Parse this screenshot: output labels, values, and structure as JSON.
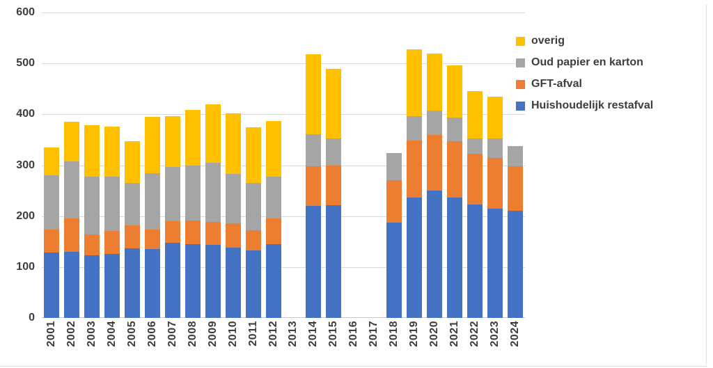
{
  "chart": {
    "legend": [
      {
        "label": "overig",
        "color": "#FFC000"
      },
      {
        "label": "Oud papier en karton",
        "color": "#A5A5A5"
      },
      {
        "label": "GFT-afval",
        "color": "#ED7D31"
      },
      {
        "label": "Huishoudelijk restafval",
        "color": "#4472C4"
      }
    ],
    "y_ticks": [
      "600",
      "500",
      "400",
      "300",
      "200",
      "100",
      "0"
    ]
  },
  "chart_data": {
    "type": "bar",
    "stacked": true,
    "title": "",
    "xlabel": "",
    "ylabel": "",
    "ylim": [
      0,
      600
    ],
    "y_step": 100,
    "grid": true,
    "legend_position": "right",
    "categories": [
      "2001",
      "2002",
      "2003",
      "2004",
      "2005",
      "2006",
      "2007",
      "2008",
      "2009",
      "2010",
      "2011",
      "2012",
      "2013",
      "2014",
      "2015",
      "2016",
      "2017",
      "2018",
      "2019",
      "2020",
      "2021",
      "2022",
      "2023",
      "2024"
    ],
    "missing_years": [
      "2013",
      "2016",
      "2017"
    ],
    "series": [
      {
        "name": "Huishoudelijk restafval",
        "color": "#4472C4",
        "values": [
          129,
          130,
          123,
          126,
          137,
          135,
          148,
          145,
          144,
          138,
          132,
          145,
          0,
          220,
          221,
          0,
          0,
          187,
          237,
          250,
          236,
          223,
          215,
          210
        ]
      },
      {
        "name": "GFT-afval",
        "color": "#ED7D31",
        "values": [
          45,
          65,
          41,
          45,
          45,
          38,
          42,
          47,
          45,
          48,
          40,
          50,
          0,
          78,
          79,
          0,
          0,
          84,
          112,
          109,
          111,
          100,
          99,
          88
        ]
      },
      {
        "name": "Oud papier en karton",
        "color": "#A5A5A5",
        "values": [
          106,
          112,
          113,
          107,
          83,
          111,
          106,
          108,
          116,
          97,
          93,
          82,
          0,
          63,
          53,
          0,
          0,
          53,
          48,
          48,
          47,
          30,
          39,
          40
        ]
      },
      {
        "name": "overig",
        "color": "#FFC000",
        "values": [
          55,
          78,
          102,
          98,
          82,
          111,
          100,
          109,
          115,
          119,
          110,
          110,
          0,
          157,
          136,
          0,
          0,
          0,
          130,
          112,
          102,
          93,
          82,
          0
        ]
      }
    ],
    "totals": [
      335,
      385,
      379,
      376,
      347,
      395,
      396,
      409,
      420,
      402,
      375,
      387,
      0,
      518,
      489,
      0,
      0,
      324,
      527,
      519,
      496,
      446,
      435,
      338
    ]
  }
}
